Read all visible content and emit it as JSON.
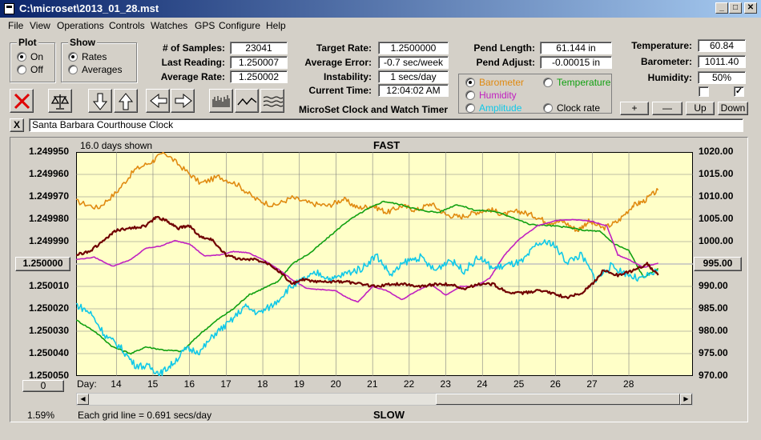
{
  "window": {
    "title": "C:\\microset\\2013_01_28.mst"
  },
  "menu": [
    "File",
    "View",
    "Operations",
    "Controls",
    "Watches",
    "GPS",
    "Configure",
    "Help"
  ],
  "plot_group": {
    "title": "Plot",
    "on_label": "On",
    "off_label": "Off",
    "selected": "On"
  },
  "show_group": {
    "title": "Show",
    "rates_label": "Rates",
    "averages_label": "Averages",
    "selected": "Rates"
  },
  "stats": {
    "samples_label": "# of Samples:",
    "samples": "23041",
    "last_label": "Last Reading:",
    "last": "1.250007",
    "avg_label": "Average Rate:",
    "avg": "1.250002",
    "target_label": "Target Rate:",
    "target": "1.2500000",
    "avgerr_label": "Average Error:",
    "avgerr": "-0.7 sec/week",
    "instab_label": "Instability:",
    "instab": "1 secs/day",
    "time_label": "Current Time:",
    "time": "12:04:02 AM",
    "pendlen_label": "Pend Length:",
    "pendlen": "61.144 in",
    "pendadj_label": "Pend Adjust:",
    "pendadj": "-0.00015 in",
    "temp_label": "Temperature:",
    "temp": "60.84",
    "baro_label": "Barometer:",
    "baro": "1011.40",
    "hum_label": "Humidity:",
    "hum": "50%"
  },
  "app_title": "MicroSet Clock and Watch Timer",
  "overlay_group": {
    "barometer": "Barometer",
    "temperature": "Temperature",
    "humidity": "Humidity",
    "amplitude": "Amplitude",
    "clock_rate": "Clock rate",
    "selected": "Barometer",
    "colors": {
      "barometer": "#e08a10",
      "temperature": "#10a010",
      "humidity": "#c020c0",
      "amplitude": "#10c8e8",
      "clock_rate": "#000000"
    }
  },
  "scale_buttons": {
    "plus": "+",
    "minus": "—",
    "up": "Up",
    "down": "Down"
  },
  "checkboxes": [
    false,
    true
  ],
  "description": {
    "close": "X",
    "value": "Santa Barbara Courthouse Clock"
  },
  "chart_data": {
    "type": "line",
    "title": "FAST",
    "footer": "SLOW",
    "days_shown": "16.0 days shown",
    "grid_note": "Each grid line = 0.691 secs/day",
    "percent": "1.59%",
    "day_label": "Day:",
    "left_ticks": [
      "1.249950",
      "1.249960",
      "1.249970",
      "1.249980",
      "1.249990",
      "1.250000",
      "1.250010",
      "1.250020",
      "1.250030",
      "1.250040",
      "1.250050"
    ],
    "left_button": "1.250000",
    "right_ticks": [
      "1020.00",
      "1015.00",
      "1010.00",
      "1005.00",
      "1000.00",
      "995.00",
      "990.00",
      "985.00",
      "980.00",
      "975.00",
      "970.00"
    ],
    "right_button": "995.00",
    "x_ticks": [
      14,
      15,
      16,
      17,
      18,
      19,
      20,
      21,
      22,
      23,
      24,
      25,
      26,
      27,
      28
    ],
    "x_range": [
      12.9,
      29.75
    ],
    "ylim_left": [
      1.25005,
      1.24995
    ],
    "ylim_right": [
      970,
      1020
    ],
    "zero_button": "0",
    "colors": {
      "background": "#ffffc8",
      "grid": "#808080",
      "reference": "#c0c0c0"
    },
    "series": [
      {
        "name": "Barometer",
        "color": "#e08a10",
        "axis": "right",
        "x": [
          12.9,
          13.5,
          14.0,
          14.5,
          15.0,
          15.3,
          15.8,
          16.3,
          16.8,
          17.3,
          17.8,
          18.3,
          18.8,
          19.3,
          19.8,
          20.2,
          20.6,
          21.0,
          21.4,
          21.8,
          22.2,
          22.6,
          23.0,
          23.4,
          23.8,
          24.2,
          24.6,
          25.0,
          25.4,
          25.8,
          26.2,
          26.6,
          26.9,
          27.3,
          27.7,
          28.1,
          28.4,
          28.8
        ],
        "y": [
          1009,
          1007.5,
          1011,
          1016,
          1018,
          1020,
          1016.5,
          1013,
          1014.5,
          1012.8,
          1009.5,
          1008,
          1009.8,
          1008.5,
          1008,
          1009.5,
          1007.5,
          1008,
          1006.5,
          1008,
          1007,
          1008.5,
          1006,
          1005.5,
          1006.5,
          1007.2,
          1006,
          1006.8,
          1005.8,
          1004.3,
          1004.5,
          1002.5,
          1004.5,
          1003,
          1004.5,
          1008,
          1009,
          1011.5
        ]
      },
      {
        "name": "Temperature",
        "color": "#10a010",
        "axis": "right",
        "x": [
          12.9,
          13.4,
          13.9,
          14.4,
          14.8,
          15.3,
          15.8,
          16.3,
          16.8,
          17.2,
          17.6,
          18.0,
          18.4,
          18.8,
          19.3,
          19.8,
          20.3,
          20.8,
          21.3,
          21.8,
          22.3,
          22.8,
          23.3,
          23.8,
          24.3,
          24.8,
          25.3,
          25.8,
          26.3,
          26.8,
          27.2,
          27.6,
          28.0,
          28.4,
          28.8
        ],
        "y": [
          982.5,
          980,
          976.5,
          975,
          976.5,
          975.8,
          975.5,
          979.5,
          982.8,
          985,
          988,
          989.5,
          991,
          995,
          997.5,
          1001,
          1004.5,
          1007,
          1009,
          1008.2,
          1007,
          1006.5,
          1008.3,
          1007,
          1006.8,
          1005.5,
          1003.8,
          1003.6,
          1003.2,
          1002.5,
          1002.3,
          999.5,
          998,
          992,
          994
        ]
      },
      {
        "name": "Humidity",
        "color": "#c020c0",
        "axis": "right",
        "x": [
          12.9,
          13.4,
          13.9,
          14.4,
          14.8,
          15.2,
          15.6,
          16.0,
          16.4,
          16.8,
          17.2,
          17.6,
          18.0,
          18.4,
          18.8,
          19.2,
          19.6,
          20.0,
          20.3,
          20.6,
          21.0,
          21.4,
          21.8,
          22.2,
          22.6,
          23.0,
          23.4,
          23.8,
          24.2,
          24.6,
          25.0,
          25.5,
          26.0,
          26.5,
          27.0,
          27.4,
          27.7,
          28.0,
          28.4,
          28.8
        ],
        "y": [
          996,
          996.5,
          994.5,
          996,
          998.5,
          999,
          1000.2,
          999.5,
          996.8,
          997,
          997.8,
          997.5,
          996,
          994,
          991.5,
          989.5,
          989.3,
          989,
          987.5,
          986.5,
          990,
          989,
          987,
          989,
          990.5,
          988,
          990,
          990,
          991.8,
          997,
          1000.5,
          1003.5,
          1004.7,
          1004.9,
          1004.5,
          1003.5,
          997,
          996,
          994.2,
          995.2
        ]
      },
      {
        "name": "Amplitude",
        "color": "#10c8e8",
        "axis": "right",
        "x": [
          12.9,
          13.3,
          13.7,
          14.1,
          14.5,
          14.9,
          15.2,
          15.5,
          15.9,
          16.3,
          16.7,
          17.1,
          17.5,
          17.9,
          18.3,
          18.7,
          19.1,
          19.5,
          19.9,
          20.3,
          20.7,
          21.1,
          21.5,
          21.9,
          22.3,
          22.7,
          23.1,
          23.5,
          23.9,
          24.3,
          24.7,
          25.1,
          25.5,
          25.9,
          26.3,
          26.7,
          27.1,
          27.5,
          27.9,
          28.3,
          28.8
        ],
        "y": [
          986,
          984,
          979,
          976.5,
          972.5,
          972,
          970.5,
          972.5,
          976,
          975.5,
          979.5,
          982,
          985.5,
          984,
          986,
          989.5,
          991.5,
          993,
          991.5,
          993,
          994,
          997,
          992.5,
          995.5,
          996.5,
          993.5,
          996,
          993.5,
          996.5,
          994,
          994.8,
          995.5,
          999.5,
          999.8,
          995.5,
          997,
          991.5,
          994.5,
          993,
          991.5,
          993.5
        ]
      },
      {
        "name": "Clock rate",
        "color": "#700000",
        "axis": "left",
        "x": [
          12.9,
          13.3,
          13.7,
          14.0,
          14.4,
          14.8,
          15.1,
          15.4,
          15.7,
          16.0,
          16.3,
          16.6,
          17.0,
          17.4,
          17.8,
          18.2,
          18.5,
          18.8,
          19.1,
          19.5,
          19.9,
          20.3,
          20.7,
          21.1,
          21.5,
          21.9,
          22.3,
          22.7,
          23.1,
          23.5,
          23.9,
          24.3,
          24.7,
          25.1,
          25.5,
          25.9,
          26.3,
          26.7,
          27.0,
          27.3,
          27.7,
          28.1,
          28.5,
          28.8
        ],
        "y": [
          1.249996,
          1.249994,
          1.249989,
          1.249985,
          1.249984,
          1.249983,
          1.249979,
          1.249981,
          1.249984,
          1.249983,
          1.249988,
          1.249989,
          1.249996,
          1.249998,
          1.249998,
          1.25,
          1.250004,
          1.250009,
          1.250007,
          1.250008,
          1.250008,
          1.250008,
          1.250009,
          1.25001,
          1.250009,
          1.250009,
          1.25001,
          1.250009,
          1.250009,
          1.250011,
          1.250009,
          1.250009,
          1.250013,
          1.250013,
          1.250012,
          1.250013,
          1.250015,
          1.250013,
          1.250009,
          1.250003,
          1.250005,
          1.250003,
          1.25,
          1.250005
        ]
      }
    ]
  }
}
